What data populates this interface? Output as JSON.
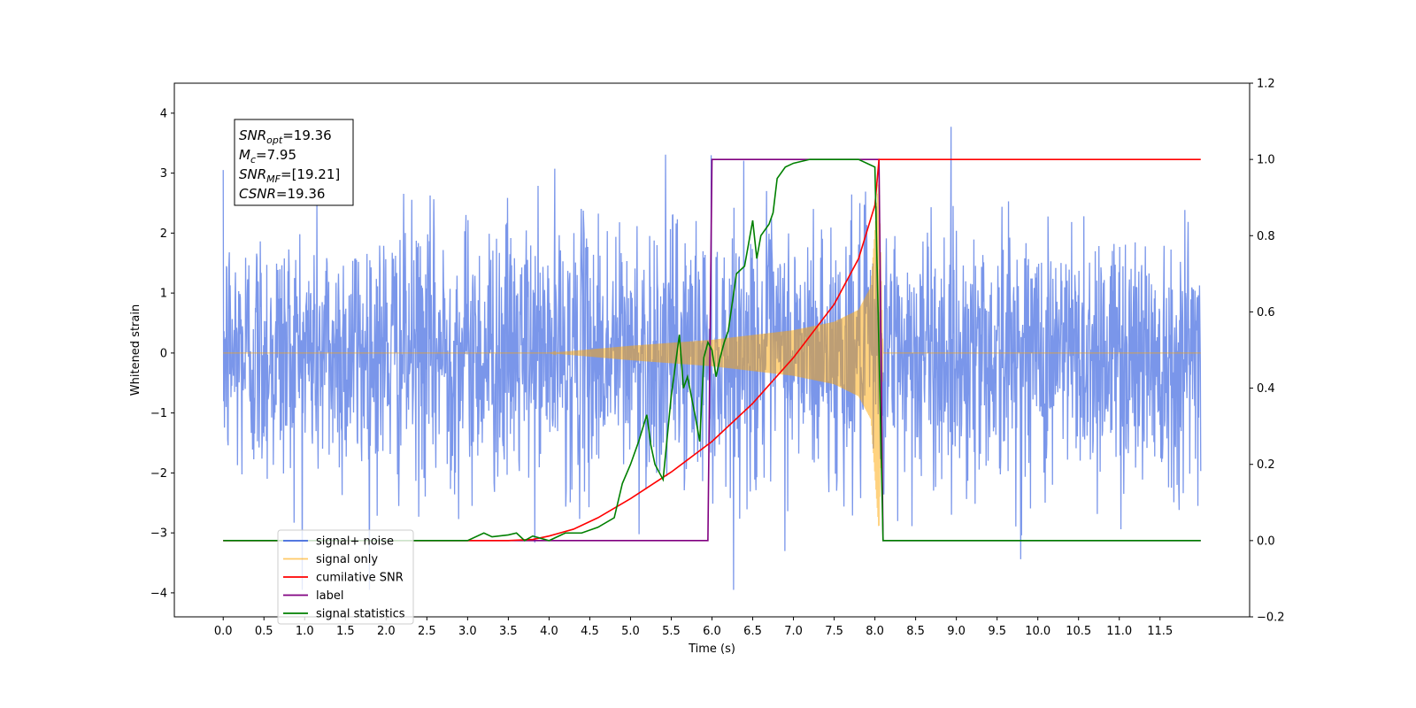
{
  "chart_data": {
    "type": "line",
    "title": "",
    "xlabel": "Time (s)",
    "ylabel": "Whitened strain",
    "y2label": "",
    "xlim": [
      -0.6,
      12.6
    ],
    "ylim": [
      -4.4,
      4.5
    ],
    "y2lim": [
      -0.2,
      1.2
    ],
    "x_ticks": [
      0.0,
      0.5,
      1.0,
      1.5,
      2.0,
      2.5,
      3.0,
      3.5,
      4.0,
      4.5,
      5.0,
      5.5,
      6.0,
      6.5,
      7.0,
      7.5,
      8.0,
      8.5,
      9.0,
      9.5,
      10.0,
      10.5,
      11.0,
      11.5
    ],
    "x_tick_labels": [
      "0.0",
      "0.5",
      "1.0",
      "1.5",
      "2.0",
      "2.5",
      "3.0",
      "3.5",
      "4.0",
      "4.5",
      "5.0",
      "5.5",
      "6.0",
      "6.5",
      "7.0",
      "7.5",
      "8.0",
      "8.5",
      "9.0",
      "9.5",
      "10.0",
      "10.5",
      "11.0",
      "11.5"
    ],
    "y_ticks": [
      4,
      3,
      2,
      1,
      0,
      -1,
      -2,
      -3,
      -4
    ],
    "y_tick_labels": [
      "4",
      "3",
      "2",
      "1",
      "0",
      "−1",
      "−2",
      "−3",
      "−4"
    ],
    "y2_ticks": [
      1.2,
      1.0,
      0.8,
      0.6,
      0.4,
      0.2,
      0.0,
      -0.2
    ],
    "y2_tick_labels": [
      "1.2",
      "1.0",
      "0.8",
      "0.6",
      "0.4",
      "0.2",
      "0.0",
      "−0.2"
    ],
    "grid": false,
    "legend_position": "lower-left",
    "annotation": {
      "lines": [
        {
          "sym": "SNR",
          "sub": "opt",
          "value": "=19.36"
        },
        {
          "sym": "M",
          "sub": "c",
          "value": "=7.95"
        },
        {
          "sym": "SNR",
          "sub": "MF",
          "value": "=[19.21]"
        },
        {
          "sym": "CSNR",
          "sub": "",
          "value": "=19.36"
        }
      ]
    },
    "series": [
      {
        "name": "signal+ noise",
        "color": "#4169e1",
        "axis": "left",
        "description": "white noise, sigma ~1.1, range about -4 to 4.1, from 0 to 12 s",
        "noise_sigma": 1.1,
        "x_range": [
          0,
          12
        ]
      },
      {
        "name": "signal only",
        "color": "#ffa500",
        "axis": "left",
        "description": "chirp, amplitude grows from ~0 at 4.0 s to ~3 at 8.05 s, then 0",
        "envelope": {
          "x": [
            0.0,
            4.0,
            5.0,
            6.0,
            7.0,
            7.5,
            7.8,
            7.95,
            8.05,
            8.1,
            12.0
          ],
          "y": [
            0.0,
            0.0,
            0.12,
            0.22,
            0.38,
            0.52,
            0.72,
            1.1,
            3.0,
            0.0,
            0.0
          ]
        }
      },
      {
        "name": "cumilative SNR",
        "color": "#ff0000",
        "axis": "right",
        "x": [
          0.0,
          3.5,
          3.8,
          4.0,
          4.3,
          4.6,
          5.0,
          5.5,
          6.0,
          6.5,
          7.0,
          7.5,
          7.8,
          8.0,
          8.05,
          8.1,
          12.0
        ],
        "y": [
          0.0,
          0.0,
          0.003,
          0.012,
          0.03,
          0.06,
          0.11,
          0.18,
          0.26,
          0.36,
          0.48,
          0.62,
          0.74,
          0.88,
          1.0,
          1.0,
          1.0
        ]
      },
      {
        "name": "label",
        "color": "#800080",
        "axis": "right",
        "x": [
          0.0,
          5.95,
          6.0,
          8.05,
          8.1,
          12.0
        ],
        "y": [
          0.0,
          0.0,
          1.0,
          1.0,
          0.0,
          0.0
        ]
      },
      {
        "name": "signal statistics",
        "color": "#008000",
        "axis": "right",
        "x": [
          0.0,
          3.0,
          3.2,
          3.3,
          3.5,
          3.6,
          3.7,
          3.8,
          4.0,
          4.2,
          4.4,
          4.6,
          4.8,
          4.9,
          5.0,
          5.1,
          5.2,
          5.25,
          5.3,
          5.4,
          5.5,
          5.6,
          5.65,
          5.7,
          5.8,
          5.85,
          5.9,
          5.95,
          6.0,
          6.05,
          6.1,
          6.15,
          6.2,
          6.3,
          6.4,
          6.5,
          6.55,
          6.6,
          6.7,
          6.75,
          6.8,
          6.9,
          7.0,
          7.2,
          7.5,
          7.8,
          8.0,
          8.05,
          8.1,
          8.2,
          12.0
        ],
        "y": [
          0.0,
          0.0,
          0.02,
          0.01,
          0.015,
          0.02,
          0.0,
          0.012,
          0.0,
          0.02,
          0.02,
          0.035,
          0.06,
          0.15,
          0.2,
          0.26,
          0.33,
          0.25,
          0.2,
          0.16,
          0.38,
          0.54,
          0.4,
          0.43,
          0.32,
          0.26,
          0.48,
          0.52,
          0.5,
          0.43,
          0.48,
          0.52,
          0.55,
          0.7,
          0.72,
          0.84,
          0.74,
          0.8,
          0.83,
          0.86,
          0.95,
          0.98,
          0.99,
          1.0,
          1.0,
          1.0,
          0.98,
          0.5,
          0.0,
          0.0,
          0.0
        ]
      }
    ],
    "legend": [
      {
        "label": "signal+ noise",
        "color": "#4169e1"
      },
      {
        "label": "signal only",
        "color": "#ffa500"
      },
      {
        "label": "cumilative SNR",
        "color": "#ff0000"
      },
      {
        "label": "label",
        "color": "#800080"
      },
      {
        "label": "signal statistics",
        "color": "#008000"
      }
    ]
  }
}
